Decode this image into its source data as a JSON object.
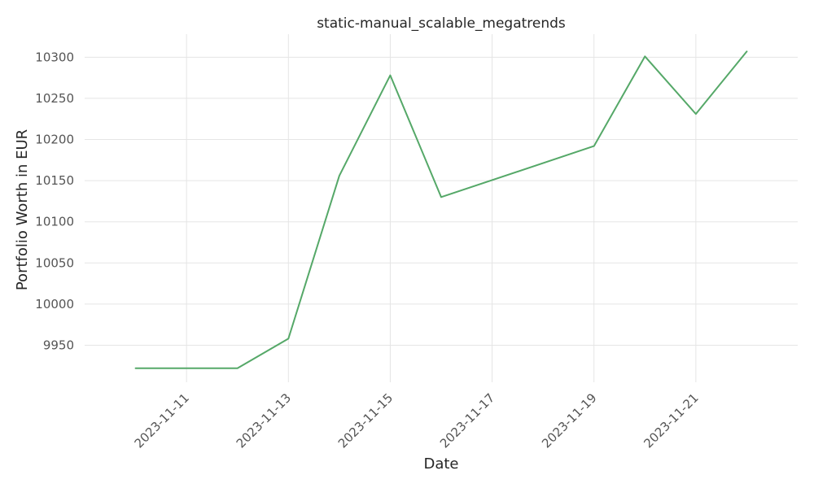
{
  "chart_data": {
    "type": "line",
    "title": "static-manual_scalable_megatrends",
    "xlabel": "Date",
    "ylabel": "Portfolio Worth in EUR",
    "x": [
      "2023-11-10",
      "2023-11-11",
      "2023-11-12",
      "2023-11-13",
      "2023-11-14",
      "2023-11-15",
      "2023-11-16",
      "2023-11-19",
      "2023-11-20",
      "2023-11-21",
      "2023-11-22"
    ],
    "series": [
      {
        "values": [
          9922,
          9922,
          9922,
          9958,
          10156,
          10278,
          10130,
          10192,
          10301,
          10231,
          10307
        ]
      }
    ],
    "x_ticks": [
      "2023-11-11",
      "2023-11-13",
      "2023-11-15",
      "2023-11-17",
      "2023-11-19",
      "2023-11-21"
    ],
    "y_ticks": [
      9950,
      10000,
      10050,
      10100,
      10150,
      10200,
      10250,
      10300
    ],
    "xlim": [
      "2023-11-09",
      "2023-11-23"
    ],
    "ylim": [
      9905,
      10328
    ],
    "grid": true,
    "legend": "none",
    "colors": {
      "line": "#55a868",
      "grid": "#e5e5e5",
      "text": "#262626",
      "tick_text": "#555555"
    }
  }
}
